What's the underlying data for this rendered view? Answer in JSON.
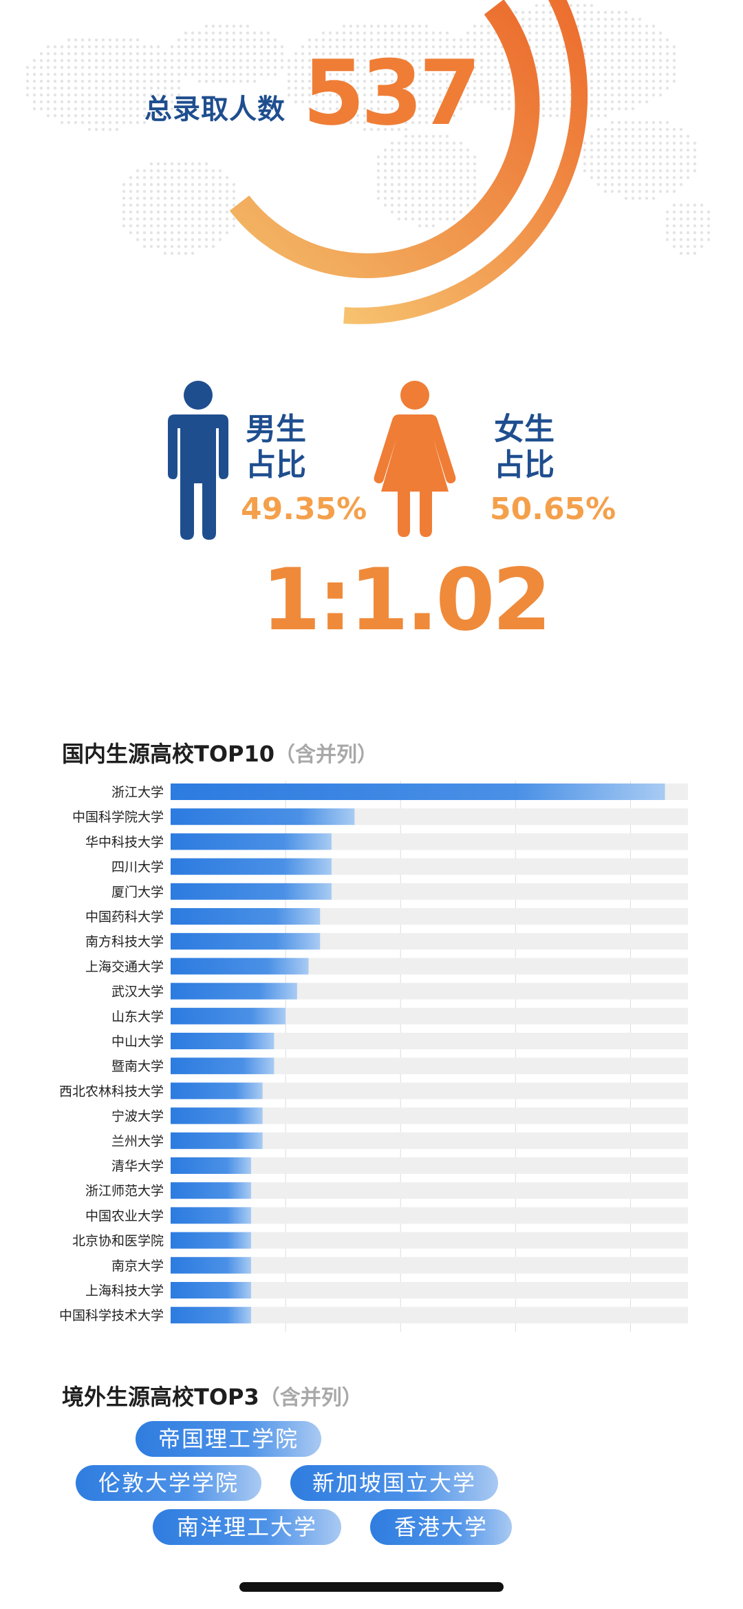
{
  "summary": {
    "total_label": "总录取人数",
    "total_value": "537"
  },
  "gender": {
    "male_label_line1": "男生",
    "male_label_line2": "占比",
    "male_percent": "49.35%",
    "female_label_line1": "女生",
    "female_label_line2": "占比",
    "female_percent": "50.65%",
    "ratio": "1:1.02",
    "male_color": "#1f4e8f",
    "female_color": "#ef7d36"
  },
  "domestic": {
    "title": "国内生源高校TOP10",
    "subtitle": "（含并列）"
  },
  "chart_data": {
    "type": "bar",
    "orientation": "horizontal",
    "categories": [
      "浙江大学",
      "中国科学院大学",
      "华中科技大学",
      "四川大学",
      "厦门大学",
      "中国药科大学",
      "南方科技大学",
      "上海交通大学",
      "武汉大学",
      "山东大学",
      "中山大学",
      "暨南大学",
      "西北农林科技大学",
      "宁波大学",
      "兰州大学",
      "清华大学",
      "浙江师范大学",
      "中国农业大学",
      "北京协和医学院",
      "南京大学",
      "上海科技大学",
      "中国科学技术大学"
    ],
    "values": [
      43,
      16,
      14,
      14,
      14,
      13,
      13,
      12,
      11,
      10,
      9,
      9,
      8,
      8,
      8,
      7,
      7,
      7,
      7,
      7,
      7,
      7
    ],
    "xlim": [
      0,
      45
    ],
    "grid": true,
    "bar_color_start": "#2c7be0",
    "bar_color_end": "#a8cbf3",
    "track_color": "#efefef"
  },
  "overseas": {
    "title": "境外生源高校TOP3",
    "subtitle": "（含并列）",
    "schools": [
      "帝国理工学院",
      "伦敦大学学院",
      "新加坡国立大学",
      "南洋理工大学",
      "香港大学"
    ]
  }
}
